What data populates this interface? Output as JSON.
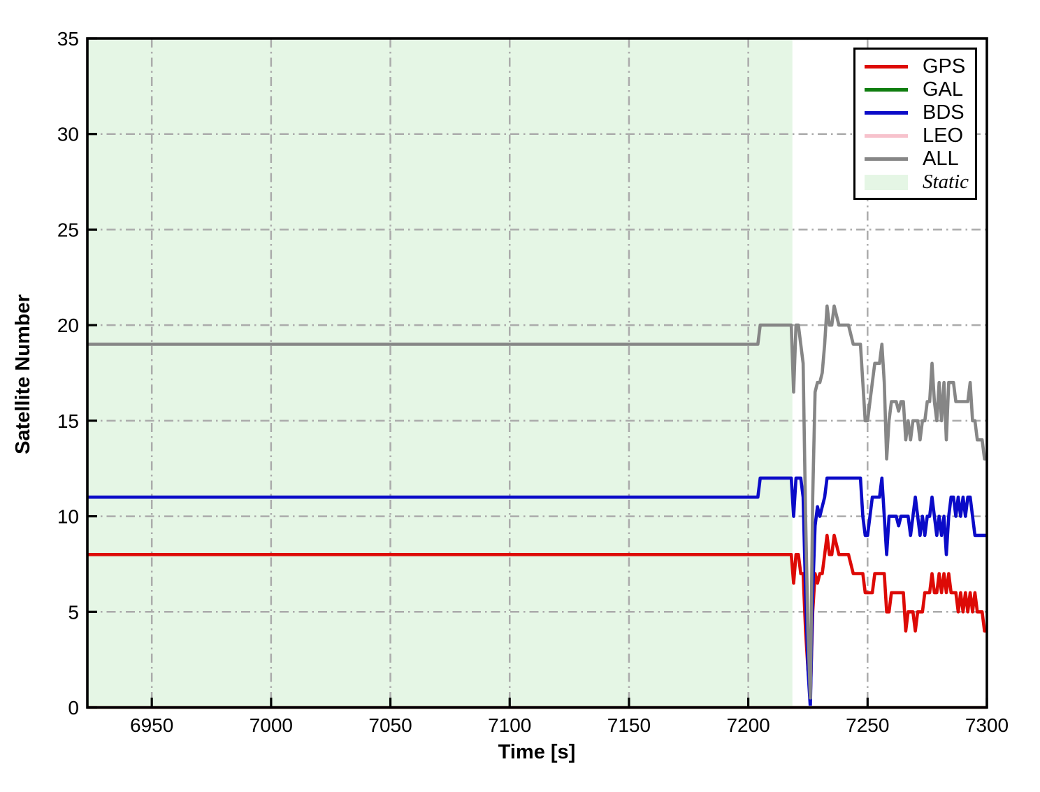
{
  "figure": {
    "background": "#ffffff"
  },
  "chart_data": {
    "type": "line",
    "title": "",
    "xlabel": "Time [s]",
    "ylabel": "Satellite Number",
    "xlim": [
      6923,
      7300
    ],
    "ylim": [
      0,
      35
    ],
    "xticks": [
      6950,
      7000,
      7050,
      7100,
      7150,
      7200,
      7250,
      7300
    ],
    "yticks": [
      0,
      5,
      10,
      15,
      20,
      25,
      30,
      35
    ],
    "grid": {
      "show": true,
      "style": "dash-dot",
      "color": "#ababab"
    },
    "axis_color": "#000000",
    "static_region": {
      "label": "Static",
      "x_start": 6923,
      "x_end": 7218.5,
      "fill": "#e5f6e5"
    },
    "legend": {
      "position": "upper right",
      "entries": [
        "GPS",
        "GAL",
        "BDS",
        "LEO",
        "ALL",
        "Static"
      ]
    },
    "series": [
      {
        "name": "GPS",
        "color": "#dd0a06",
        "points": [
          [
            6923,
            8
          ],
          [
            7218,
            8
          ],
          [
            7219,
            6.5
          ],
          [
            7220,
            8
          ],
          [
            7221,
            8
          ],
          [
            7222,
            7
          ],
          [
            7223,
            7
          ],
          [
            7224,
            4
          ],
          [
            7225,
            2
          ],
          [
            7226,
            0.5
          ],
          [
            7227,
            5
          ],
          [
            7228,
            7
          ],
          [
            7229,
            6.5
          ],
          [
            7230,
            7
          ],
          [
            7231,
            7
          ],
          [
            7232,
            8
          ],
          [
            7233,
            9
          ],
          [
            7234,
            8
          ],
          [
            7235,
            8
          ],
          [
            7236,
            9
          ],
          [
            7237,
            8.5
          ],
          [
            7238,
            8
          ],
          [
            7242,
            8
          ],
          [
            7243,
            7.5
          ],
          [
            7244,
            7
          ],
          [
            7248,
            7
          ],
          [
            7249,
            6
          ],
          [
            7252,
            6
          ],
          [
            7253,
            7
          ],
          [
            7257,
            7
          ],
          [
            7258,
            5
          ],
          [
            7259,
            5
          ],
          [
            7260,
            6
          ],
          [
            7265,
            6
          ],
          [
            7266,
            4
          ],
          [
            7267,
            5
          ],
          [
            7269,
            5
          ],
          [
            7270,
            4
          ],
          [
            7271,
            5
          ],
          [
            7273,
            5
          ],
          [
            7274,
            6
          ],
          [
            7276,
            6
          ],
          [
            7277,
            7
          ],
          [
            7278,
            6
          ],
          [
            7279,
            6
          ],
          [
            7280,
            7
          ],
          [
            7281,
            6
          ],
          [
            7282,
            7
          ],
          [
            7283,
            6
          ],
          [
            7284,
            7
          ],
          [
            7285,
            6
          ],
          [
            7287,
            6
          ],
          [
            7288,
            5
          ],
          [
            7289,
            6
          ],
          [
            7290,
            5
          ],
          [
            7291,
            6
          ],
          [
            7292,
            5
          ],
          [
            7293,
            6
          ],
          [
            7294,
            5
          ],
          [
            7295,
            6
          ],
          [
            7296,
            5
          ],
          [
            7298,
            5
          ],
          [
            7299,
            4
          ],
          [
            7300,
            4
          ]
        ]
      },
      {
        "name": "GAL",
        "color": "#0f7d0f",
        "points": [
          [
            6923,
            0
          ],
          [
            7300,
            0
          ]
        ]
      },
      {
        "name": "BDS",
        "color": "#0b0bc8",
        "points": [
          [
            6923,
            11
          ],
          [
            7204,
            11
          ],
          [
            7205,
            12
          ],
          [
            7218,
            12
          ],
          [
            7219,
            10
          ],
          [
            7220,
            12
          ],
          [
            7222,
            12
          ],
          [
            7223,
            11
          ],
          [
            7224,
            6
          ],
          [
            7225,
            2
          ],
          [
            7226,
            0
          ],
          [
            7227,
            6
          ],
          [
            7228,
            9.5
          ],
          [
            7229,
            10.5
          ],
          [
            7230,
            10
          ],
          [
            7231,
            10.5
          ],
          [
            7232,
            11
          ],
          [
            7233,
            12
          ],
          [
            7247,
            12
          ],
          [
            7248,
            10
          ],
          [
            7249,
            9
          ],
          [
            7250,
            9
          ],
          [
            7251,
            10
          ],
          [
            7252,
            11
          ],
          [
            7255,
            11
          ],
          [
            7256,
            12
          ],
          [
            7257,
            10
          ],
          [
            7258,
            8
          ],
          [
            7259,
            10
          ],
          [
            7262,
            10
          ],
          [
            7263,
            9.5
          ],
          [
            7264,
            10
          ],
          [
            7267,
            10
          ],
          [
            7268,
            9
          ],
          [
            7269,
            10
          ],
          [
            7270,
            11
          ],
          [
            7271,
            10
          ],
          [
            7272,
            9
          ],
          [
            7273,
            10
          ],
          [
            7274,
            9
          ],
          [
            7275,
            10
          ],
          [
            7276,
            10
          ],
          [
            7277,
            11
          ],
          [
            7278,
            10
          ],
          [
            7279,
            9
          ],
          [
            7280,
            10
          ],
          [
            7281,
            9
          ],
          [
            7282,
            10
          ],
          [
            7283,
            8
          ],
          [
            7284,
            10
          ],
          [
            7285,
            11
          ],
          [
            7286,
            11
          ],
          [
            7287,
            10
          ],
          [
            7288,
            11
          ],
          [
            7289,
            10
          ],
          [
            7290,
            11
          ],
          [
            7291,
            10
          ],
          [
            7292,
            11
          ],
          [
            7293,
            11
          ],
          [
            7294,
            10
          ],
          [
            7295,
            9
          ],
          [
            7300,
            9
          ]
        ]
      },
      {
        "name": "LEO",
        "color": "#f7c2cc",
        "points": [
          [
            6923,
            0
          ],
          [
            7300,
            0
          ]
        ]
      },
      {
        "name": "ALL",
        "color": "#868686",
        "points": [
          [
            6923,
            19
          ],
          [
            7204,
            19
          ],
          [
            7205,
            20
          ],
          [
            7218,
            20
          ],
          [
            7219,
            16.5
          ],
          [
            7220,
            20
          ],
          [
            7221,
            20
          ],
          [
            7222,
            19
          ],
          [
            7223,
            18
          ],
          [
            7224,
            10
          ],
          [
            7225,
            4
          ],
          [
            7226,
            0.5
          ],
          [
            7227,
            11
          ],
          [
            7228,
            16.5
          ],
          [
            7229,
            17
          ],
          [
            7230,
            17
          ],
          [
            7231,
            17.5
          ],
          [
            7232,
            19
          ],
          [
            7233,
            21
          ],
          [
            7234,
            20
          ],
          [
            7235,
            20
          ],
          [
            7236,
            21
          ],
          [
            7237,
            20.5
          ],
          [
            7238,
            20
          ],
          [
            7242,
            20
          ],
          [
            7243,
            19.5
          ],
          [
            7244,
            19
          ],
          [
            7247,
            19
          ],
          [
            7248,
            17
          ],
          [
            7249,
            15
          ],
          [
            7250,
            15
          ],
          [
            7251,
            16
          ],
          [
            7252,
            17
          ],
          [
            7253,
            18
          ],
          [
            7255,
            18
          ],
          [
            7256,
            19
          ],
          [
            7257,
            17
          ],
          [
            7258,
            13
          ],
          [
            7259,
            15
          ],
          [
            7260,
            16
          ],
          [
            7262,
            16
          ],
          [
            7263,
            15.5
          ],
          [
            7264,
            16
          ],
          [
            7265,
            16
          ],
          [
            7266,
            14
          ],
          [
            7267,
            15
          ],
          [
            7268,
            14
          ],
          [
            7269,
            15
          ],
          [
            7270,
            15
          ],
          [
            7271,
            15
          ],
          [
            7272,
            14
          ],
          [
            7273,
            15
          ],
          [
            7274,
            15
          ],
          [
            7275,
            16
          ],
          [
            7276,
            16
          ],
          [
            7277,
            18
          ],
          [
            7278,
            16
          ],
          [
            7279,
            15
          ],
          [
            7280,
            17
          ],
          [
            7281,
            15
          ],
          [
            7282,
            17
          ],
          [
            7283,
            14
          ],
          [
            7284,
            17
          ],
          [
            7285,
            17
          ],
          [
            7286,
            17
          ],
          [
            7287,
            16
          ],
          [
            7288,
            16
          ],
          [
            7289,
            16
          ],
          [
            7290,
            16
          ],
          [
            7291,
            16
          ],
          [
            7292,
            16
          ],
          [
            7293,
            17
          ],
          [
            7294,
            15
          ],
          [
            7295,
            15
          ],
          [
            7296,
            14
          ],
          [
            7298,
            14
          ],
          [
            7299,
            13
          ],
          [
            7300,
            13
          ]
        ]
      }
    ]
  }
}
